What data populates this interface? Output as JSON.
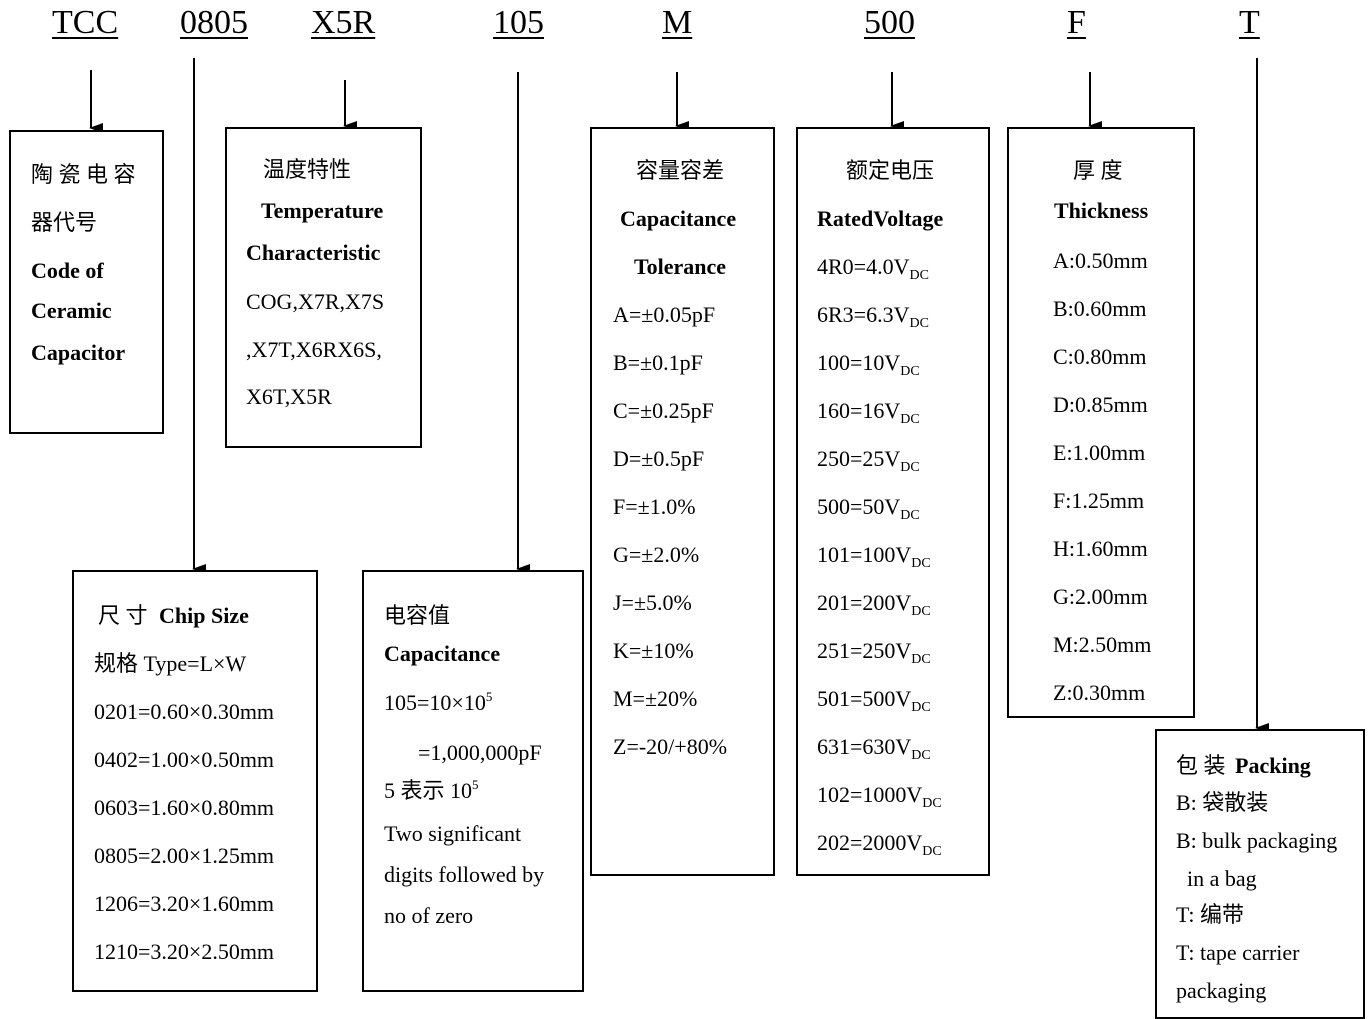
{
  "codes": [
    "TCC",
    "0805",
    "X5R",
    "105",
    "M",
    "500",
    "F",
    "T"
  ],
  "ceramic": {
    "zh_line1": "陶 瓷 电 容",
    "zh_line2": "器代号",
    "en_lines": [
      "Code of",
      "Ceramic",
      "Capacitor"
    ]
  },
  "temperature": {
    "zh": "温度特性",
    "en_line1": "Temperature",
    "en_line2": "Characteristic",
    "values": [
      "COG,X7R,X7S",
      ",X7T,X6RX6S,",
      "X6T,X5R"
    ]
  },
  "chip_size": {
    "zh_title": "尺  寸",
    "en_title": "Chip Size",
    "type_line": "规格  Type=L×W",
    "items": [
      "0201=0.60×0.30mm",
      "0402=1.00×0.50mm",
      "0603=1.60×0.80mm",
      "0805=2.00×1.25mm",
      "1206=3.20×1.60mm",
      "1210=3.20×2.50mm"
    ]
  },
  "capacitance": {
    "zh": "电容值",
    "en": "Capacitance",
    "formula_base": "105=10×10",
    "formula_exp": "5",
    "formula_result": "=1,000,000pF",
    "note_base": "5 表示 10",
    "note_exp": "5",
    "desc": [
      "Two significant",
      "digits followed by",
      "no of zero"
    ]
  },
  "tolerance": {
    "zh": "容量容差",
    "en_line1": "Capacitance",
    "en_line2": "Tolerance",
    "items": [
      "A=±0.05pF",
      "B=±0.1pF",
      "C=±0.25pF",
      "D=±0.5pF",
      "F=±1.0%",
      "G=±2.0%",
      "J=±5.0%",
      "K=±10%",
      "M=±20%",
      "Z=-20/+80%"
    ]
  },
  "voltage": {
    "zh": "额定电压",
    "en": "RatedVoltage",
    "subscript": "DC",
    "items": [
      "4R0=4.0V",
      "6R3=6.3V",
      "100=10V",
      "160=16V",
      "250=25V",
      "500=50V",
      "101=100V",
      "201=200V",
      "251=250V",
      "501=500V",
      "631=630V",
      "102=1000V",
      "202=2000V"
    ]
  },
  "thickness": {
    "zh": "厚  度",
    "en": "Thickness",
    "items": [
      "A:0.50mm",
      "B:0.60mm",
      "C:0.80mm",
      "D:0.85mm",
      "E:1.00mm",
      "F:1.25mm",
      "H:1.60mm",
      "G:2.00mm",
      "M:2.50mm",
      "Z:0.30mm"
    ]
  },
  "packing": {
    "zh_title": "包  装",
    "en_title": "Packing",
    "lines": [
      "B:  袋散装",
      "B: bulk packaging",
      "  in a bag",
      "T:  编带",
      "T: tape carrier",
      "packaging"
    ]
  }
}
